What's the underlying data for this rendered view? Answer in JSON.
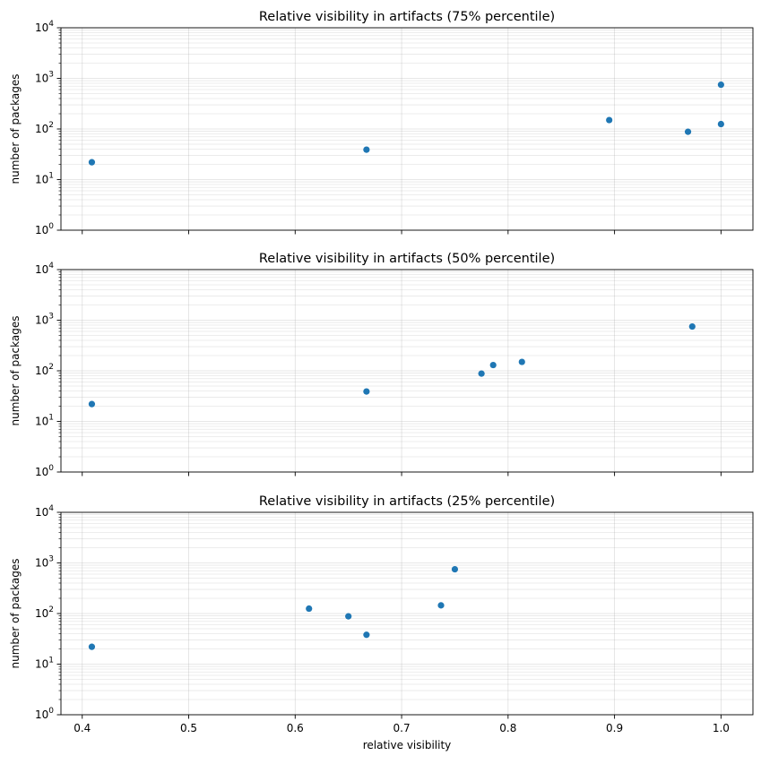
{
  "chart_data": [
    {
      "type": "scatter",
      "title": "Relative visibility in artifacts (75% percentile)",
      "xlabel": "",
      "ylabel": "number of packages",
      "xlim": [
        0.38,
        1.03
      ],
      "ylim": [
        1,
        10000
      ],
      "yscale": "log",
      "grid": true,
      "color": "#1f77b4",
      "x": [
        0.409,
        0.667,
        0.895,
        0.969,
        1.0,
        1.0
      ],
      "y": [
        22,
        39,
        150,
        88,
        125,
        750
      ],
      "xticks": [
        "",
        "",
        "",
        "",
        "",
        "",
        ""
      ],
      "yticks": [
        "10^0",
        "10^1",
        "10^2",
        "10^3",
        "10^4"
      ]
    },
    {
      "type": "scatter",
      "title": "Relative visibility in artifacts (50% percentile)",
      "xlabel": "",
      "ylabel": "number of packages",
      "xlim": [
        0.38,
        1.03
      ],
      "ylim": [
        1,
        10000
      ],
      "yscale": "log",
      "grid": true,
      "color": "#1f77b4",
      "x": [
        0.409,
        0.667,
        0.775,
        0.786,
        0.813,
        0.973
      ],
      "y": [
        22,
        39,
        88,
        130,
        150,
        750
      ],
      "xticks": [
        "",
        "",
        "",
        "",
        "",
        "",
        ""
      ],
      "yticks": [
        "10^0",
        "10^1",
        "10^2",
        "10^3",
        "10^4"
      ]
    },
    {
      "type": "scatter",
      "title": "Relative visibility in artifacts (25% percentile)",
      "xlabel": "relative visibility",
      "ylabel": "number of packages",
      "xlim": [
        0.38,
        1.03
      ],
      "ylim": [
        1,
        10000
      ],
      "yscale": "log",
      "grid": true,
      "color": "#1f77b4",
      "x": [
        0.409,
        0.613,
        0.65,
        0.667,
        0.737,
        0.75
      ],
      "y": [
        22,
        125,
        88,
        38,
        145,
        750
      ],
      "xticks": [
        "0.4",
        "0.5",
        "0.6",
        "0.7",
        "0.8",
        "0.9",
        "1.0"
      ],
      "yticks": [
        "10^0",
        "10^1",
        "10^2",
        "10^3",
        "10^4"
      ]
    }
  ]
}
